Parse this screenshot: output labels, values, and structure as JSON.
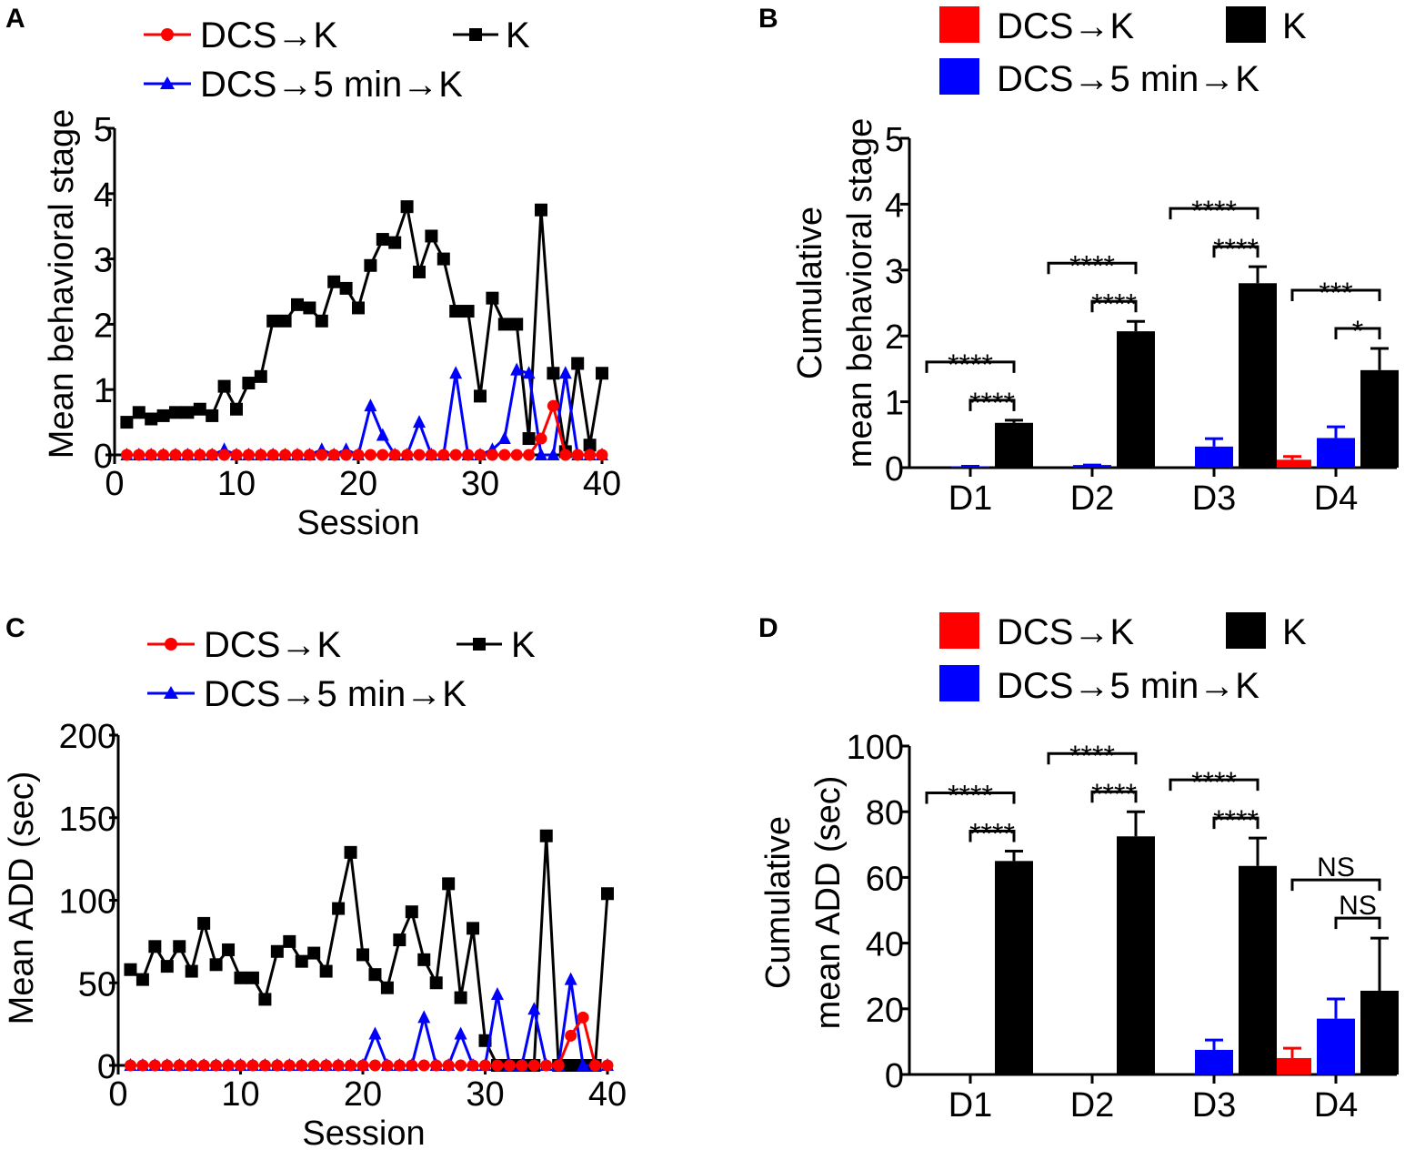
{
  "colors": {
    "red": "#ff0000",
    "blue": "#0000ff",
    "black": "#000000"
  },
  "chart_data": [
    {
      "panel": "A",
      "type": "line",
      "xlabel": "Session",
      "ylabel": "Mean behavioral stage",
      "xlim": [
        0,
        40
      ],
      "ylim": [
        0,
        5
      ],
      "xticks": [
        0,
        10,
        20,
        30,
        40
      ],
      "yticks": [
        0,
        1,
        2,
        3,
        4,
        5
      ],
      "legend": [
        {
          "label": "DCS→K",
          "color": "#ff0000",
          "marker": "circle"
        },
        {
          "label": "K",
          "color": "#000000",
          "marker": "square"
        },
        {
          "label": "DCS→5 min→K",
          "color": "#0000ff",
          "marker": "triangle"
        }
      ],
      "series": [
        {
          "name": "K",
          "color": "#000000",
          "marker": "square",
          "x": [
            1,
            2,
            3,
            4,
            5,
            6,
            7,
            8,
            9,
            10,
            11,
            12,
            13,
            14,
            15,
            16,
            17,
            18,
            19,
            20,
            21,
            22,
            23,
            24,
            25,
            26,
            27,
            28,
            29,
            30,
            31,
            32,
            33,
            34,
            35,
            36,
            37,
            38,
            39,
            40
          ],
          "y": [
            0.5,
            0.65,
            0.55,
            0.6,
            0.65,
            0.65,
            0.7,
            0.6,
            1.05,
            0.7,
            1.1,
            1.2,
            2.05,
            2.05,
            2.3,
            2.25,
            2.05,
            2.65,
            2.55,
            2.25,
            2.9,
            3.3,
            3.25,
            3.8,
            2.8,
            3.35,
            3.0,
            2.2,
            2.2,
            0.9,
            2.4,
            2.0,
            2.0,
            0.25,
            3.75,
            1.25,
            0.05,
            1.4,
            0.15,
            1.25
          ]
        },
        {
          "name": "DCS→5 min→K",
          "color": "#0000ff",
          "marker": "triangle",
          "x": [
            1,
            2,
            3,
            4,
            5,
            6,
            7,
            8,
            9,
            10,
            11,
            12,
            13,
            14,
            15,
            16,
            17,
            18,
            19,
            20,
            21,
            22,
            23,
            24,
            25,
            26,
            27,
            28,
            29,
            30,
            31,
            32,
            33,
            34,
            35,
            36,
            37,
            38,
            39,
            40
          ],
          "y": [
            0,
            0,
            0,
            0,
            0,
            0,
            0,
            0,
            0.08,
            0,
            0,
            0,
            0,
            0,
            0,
            0,
            0.08,
            0,
            0.08,
            0,
            0.75,
            0.3,
            0,
            0,
            0.5,
            0,
            0,
            1.25,
            0,
            0,
            0.08,
            0.25,
            1.3,
            1.25,
            0,
            0,
            1.25,
            0,
            0,
            0
          ]
        },
        {
          "name": "DCS→K",
          "color": "#ff0000",
          "marker": "circle",
          "x": [
            1,
            2,
            3,
            4,
            5,
            6,
            7,
            8,
            9,
            10,
            11,
            12,
            13,
            14,
            15,
            16,
            17,
            18,
            19,
            20,
            21,
            22,
            23,
            24,
            25,
            26,
            27,
            28,
            29,
            30,
            31,
            32,
            33,
            34,
            35,
            36,
            37,
            38,
            39,
            40
          ],
          "y": [
            0,
            0,
            0,
            0,
            0,
            0,
            0,
            0,
            0,
            0,
            0,
            0,
            0,
            0,
            0,
            0,
            0,
            0,
            0,
            0,
            0,
            0,
            0,
            0,
            0,
            0,
            0,
            0,
            0,
            0,
            0,
            0,
            0,
            0,
            0.25,
            0.75,
            0,
            0,
            0,
            0
          ]
        }
      ]
    },
    {
      "panel": "B",
      "type": "bar",
      "ylabel_line1": "Cumulative",
      "ylabel_line2": "mean behavioral stage",
      "ylim": [
        0,
        5
      ],
      "yticks": [
        0,
        1,
        2,
        3,
        4,
        5
      ],
      "categories": [
        "D1",
        "D2",
        "D3",
        "D4"
      ],
      "legend": [
        {
          "label": "DCS→K",
          "color": "#ff0000"
        },
        {
          "label": "K",
          "color": "#000000"
        },
        {
          "label": "DCS→5 min→K",
          "color": "#0000ff"
        }
      ],
      "series": [
        {
          "name": "DCS→K",
          "color": "#ff0000",
          "values": [
            0,
            0,
            0,
            0.12
          ],
          "errors": [
            0,
            0,
            0,
            0.05
          ]
        },
        {
          "name": "DCS→5 min→K",
          "color": "#0000ff",
          "values": [
            0.02,
            0.04,
            0.32,
            0.45
          ],
          "errors": [
            0,
            0,
            0.12,
            0.17
          ]
        },
        {
          "name": "K",
          "color": "#000000",
          "values": [
            0.68,
            2.07,
            2.8,
            1.48
          ],
          "errors": [
            0.04,
            0.15,
            0.25,
            0.33
          ]
        }
      ],
      "significance": [
        {
          "cat": 0,
          "from": "red",
          "to": "black",
          "label": "****"
        },
        {
          "cat": 0,
          "from": "blue",
          "to": "black",
          "label": "****"
        },
        {
          "cat": 1,
          "from": "red",
          "to": "black",
          "label": "****"
        },
        {
          "cat": 1,
          "from": "blue",
          "to": "black",
          "label": "****"
        },
        {
          "cat": 2,
          "from": "red",
          "to": "black",
          "label": "****"
        },
        {
          "cat": 2,
          "from": "blue",
          "to": "black",
          "label": "****"
        },
        {
          "cat": 3,
          "from": "red",
          "to": "black",
          "label": "***"
        },
        {
          "cat": 3,
          "from": "blue",
          "to": "black",
          "label": "*"
        }
      ]
    },
    {
      "panel": "C",
      "type": "line",
      "xlabel": "Session",
      "ylabel": "Mean ADD (sec)",
      "xlim": [
        0,
        40
      ],
      "ylim": [
        0,
        200
      ],
      "xticks": [
        0,
        10,
        20,
        30,
        40
      ],
      "yticks": [
        0,
        50,
        100,
        150,
        200
      ],
      "legend": [
        {
          "label": "DCS→K",
          "color": "#ff0000",
          "marker": "circle"
        },
        {
          "label": "K",
          "color": "#000000",
          "marker": "square"
        },
        {
          "label": "DCS→5 min→K",
          "color": "#0000ff",
          "marker": "triangle"
        }
      ],
      "series": [
        {
          "name": "K",
          "color": "#000000",
          "marker": "square",
          "x": [
            1,
            2,
            3,
            4,
            5,
            6,
            7,
            8,
            9,
            10,
            11,
            12,
            13,
            14,
            15,
            16,
            17,
            18,
            19,
            20,
            21,
            22,
            23,
            24,
            25,
            26,
            27,
            28,
            29,
            30,
            31,
            32,
            33,
            34,
            35,
            36,
            37,
            38,
            39,
            40
          ],
          "y": [
            58,
            52,
            72,
            60,
            72,
            57,
            86,
            61,
            70,
            53,
            53,
            40,
            69,
            75,
            63,
            68,
            57,
            95,
            129,
            67,
            55,
            47,
            76,
            93,
            64,
            50,
            110,
            41,
            83,
            15,
            0,
            0,
            0,
            0,
            139,
            0,
            0,
            0,
            0,
            104
          ]
        },
        {
          "name": "DCS→5 min→K",
          "color": "#0000ff",
          "marker": "triangle",
          "x": [
            1,
            2,
            3,
            4,
            5,
            6,
            7,
            8,
            9,
            10,
            11,
            12,
            13,
            14,
            15,
            16,
            17,
            18,
            19,
            20,
            21,
            22,
            23,
            24,
            25,
            26,
            27,
            28,
            29,
            30,
            31,
            32,
            33,
            34,
            35,
            36,
            37,
            38,
            39,
            40
          ],
          "y": [
            0,
            0,
            0,
            0,
            0,
            0,
            0,
            0,
            0,
            0,
            0,
            0,
            0,
            0,
            0,
            0,
            0,
            0,
            0,
            0,
            19,
            0,
            0,
            0,
            29,
            0,
            0,
            19,
            0,
            0,
            43,
            0,
            0,
            34,
            0,
            0,
            52,
            0,
            0,
            0
          ]
        },
        {
          "name": "DCS→K",
          "color": "#ff0000",
          "marker": "circle",
          "x": [
            1,
            2,
            3,
            4,
            5,
            6,
            7,
            8,
            9,
            10,
            11,
            12,
            13,
            14,
            15,
            16,
            17,
            18,
            19,
            20,
            21,
            22,
            23,
            24,
            25,
            26,
            27,
            28,
            29,
            30,
            31,
            32,
            33,
            34,
            35,
            36,
            37,
            38,
            39,
            40
          ],
          "y": [
            0,
            0,
            0,
            0,
            0,
            0,
            0,
            0,
            0,
            0,
            0,
            0,
            0,
            0,
            0,
            0,
            0,
            0,
            0,
            0,
            0,
            0,
            0,
            0,
            0,
            0,
            0,
            0,
            0,
            0,
            0,
            0,
            0,
            0,
            0,
            0,
            18,
            29,
            0,
            0
          ]
        }
      ]
    },
    {
      "panel": "D",
      "type": "bar",
      "ylabel_line1": "Cumulative",
      "ylabel_line2": "mean ADD (sec)",
      "ylim": [
        0,
        100
      ],
      "yticks": [
        0,
        20,
        40,
        60,
        80,
        100
      ],
      "categories": [
        "D1",
        "D2",
        "D3",
        "D4"
      ],
      "legend": [
        {
          "label": "DCS→K",
          "color": "#ff0000"
        },
        {
          "label": "K",
          "color": "#000000"
        },
        {
          "label": "DCS→5 min→K",
          "color": "#0000ff"
        }
      ],
      "series": [
        {
          "name": "DCS→K",
          "color": "#ff0000",
          "values": [
            0,
            0,
            0,
            5
          ],
          "errors": [
            0,
            0,
            0,
            3
          ]
        },
        {
          "name": "DCS→5 min→K",
          "color": "#0000ff",
          "values": [
            0,
            0,
            7.5,
            17
          ],
          "errors": [
            0,
            0,
            3,
            6
          ]
        },
        {
          "name": "K",
          "color": "#000000",
          "values": [
            65,
            72.5,
            63.5,
            25.5
          ],
          "errors": [
            3,
            7.5,
            8.5,
            16
          ]
        }
      ],
      "significance": [
        {
          "cat": 0,
          "from": "red",
          "to": "black",
          "label": "****"
        },
        {
          "cat": 0,
          "from": "blue",
          "to": "black",
          "label": "****"
        },
        {
          "cat": 1,
          "from": "red",
          "to": "black",
          "label": "****"
        },
        {
          "cat": 1,
          "from": "blue",
          "to": "black",
          "label": "****"
        },
        {
          "cat": 2,
          "from": "red",
          "to": "black",
          "label": "****"
        },
        {
          "cat": 2,
          "from": "blue",
          "to": "black",
          "label": "****"
        },
        {
          "cat": 3,
          "from": "red",
          "to": "black",
          "label": "NS"
        },
        {
          "cat": 3,
          "from": "blue",
          "to": "black",
          "label": "NS"
        }
      ]
    }
  ]
}
